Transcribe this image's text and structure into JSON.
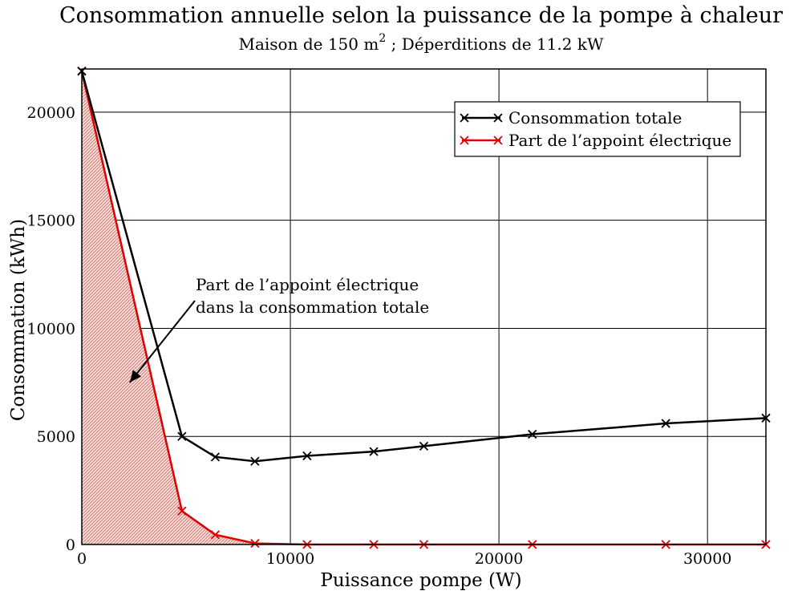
{
  "chart_data": {
    "type": "line",
    "title": "Consommation annuelle selon la puissance de la pompe à chaleur",
    "subtitle": {
      "before": "Maison de 150 m",
      "sup": "2",
      "after": " ; Déperditions de 11.2 kW"
    },
    "xlabel": "Puissance pompe (W)",
    "ylabel": "Consommation (kWh)",
    "xlim": [
      0,
      32800
    ],
    "ylim": [
      0,
      22000
    ],
    "xticks": [
      0,
      10000,
      20000,
      30000
    ],
    "yticks": [
      0,
      5000,
      10000,
      15000,
      20000
    ],
    "grid": true,
    "legend_position": "top-right",
    "series": [
      {
        "name": "Consommation totale",
        "color": "#000000",
        "marker": "x",
        "points": [
          [
            0,
            21900
          ],
          [
            4800,
            5000
          ],
          [
            6400,
            4050
          ],
          [
            8300,
            3850
          ],
          [
            10800,
            4100
          ],
          [
            14000,
            4300
          ],
          [
            16400,
            4550
          ],
          [
            21600,
            5100
          ],
          [
            28000,
            5600
          ],
          [
            32800,
            5850
          ]
        ]
      },
      {
        "name": "Part de l’appoint électrique",
        "color": "#e00000",
        "marker": "x",
        "fill": "#f4b8b8",
        "points": [
          [
            0,
            21900
          ],
          [
            4800,
            1550
          ],
          [
            6400,
            450
          ],
          [
            8300,
            50
          ],
          [
            10800,
            0
          ],
          [
            14000,
            0
          ],
          [
            16400,
            0
          ],
          [
            21600,
            0
          ],
          [
            28000,
            0
          ],
          [
            32800,
            0
          ]
        ]
      }
    ],
    "annotation": {
      "lines": [
        "Part de l’appoint électrique",
        "dans la consommation totale"
      ],
      "points_to": [
        2300,
        7500
      ]
    }
  }
}
